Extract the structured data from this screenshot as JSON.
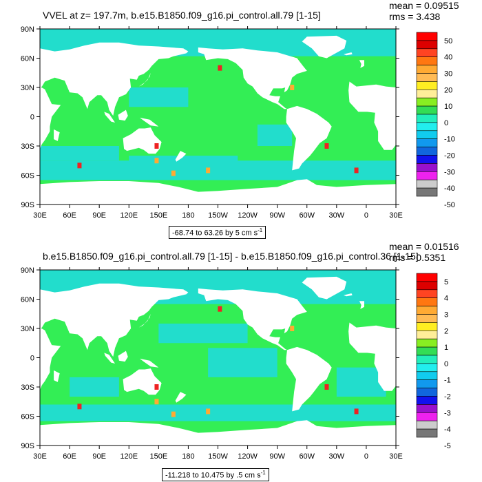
{
  "panels": [
    {
      "title": "VVEL at z= 197.7m, b.e15.B1850.f09_g16.pi_control.all.79 [1-15]",
      "mean": "mean = 0.09515",
      "rms": "rms = 3.438",
      "range_text": "-68.74 to 63.26 by 5 cm s",
      "range_unit_exp": "-1"
    },
    {
      "title": "b.e15.B1850.f09_g16.pi_control.all.79 [1-15] - b.e15.B1850.f09_g16.pi_control.36 [1-15]",
      "mean": "mean = 0.01516",
      "rms": "rms = 0.5351",
      "range_text": "-11.218 to 10.475 by .5 cm s",
      "range_unit_exp": "-1"
    }
  ],
  "colors": {
    "land": "#ffffff",
    "ocean_main": "#33ee55",
    "ocean_alt": "#22ddcc",
    "cb": [
      "#ff0000",
      "#dd0000",
      "#ff4422",
      "#ff7711",
      "#ffaa33",
      "#ffbb55",
      "#ffee22",
      "#ffee99",
      "#88ee22",
      "#33dd55",
      "#22eebb",
      "#22eeee",
      "#11ccee",
      "#1199ee",
      "#1166dd",
      "#1111ee",
      "#9911cc",
      "#ee22ee",
      "#cccccc",
      "#777777"
    ]
  },
  "chart_data": [
    {
      "type": "heatmap",
      "title": "VVEL at z= 197.7m, b.e15.B1850.f09_g16.pi_control.all.79 [1-15]",
      "x_ticks": [
        "30E",
        "60E",
        "90E",
        "120E",
        "150E",
        "180",
        "150W",
        "120W",
        "90W",
        "60W",
        "30W",
        "0",
        "30E"
      ],
      "y_ticks": [
        "90N",
        "60N",
        "30N",
        "0",
        "30S",
        "60S",
        "90S"
      ],
      "colorbar_labels": [
        "50",
        "40",
        "30",
        "20",
        "10",
        "0",
        "-10",
        "-20",
        "-30",
        "-40",
        "-50"
      ],
      "colorbar_levels": 20,
      "range": [
        -50,
        50
      ]
    },
    {
      "type": "heatmap",
      "title": "b.e15.B1850.f09_g16.pi_control.all.79 [1-15] - b.e15.B1850.f09_g16.pi_control.36 [1-15]",
      "x_ticks": [
        "30E",
        "60E",
        "90E",
        "120E",
        "150E",
        "180",
        "150W",
        "120W",
        "90W",
        "60W",
        "30W",
        "0",
        "30E"
      ],
      "y_ticks": [
        "90N",
        "60N",
        "30N",
        "0",
        "30S",
        "60S",
        "90S"
      ],
      "colorbar_labels": [
        "5",
        "4",
        "3",
        "2",
        "1",
        "0",
        "-1",
        "-2",
        "-3",
        "-4",
        "-5"
      ],
      "colorbar_levels": 20,
      "range": [
        -5,
        5
      ]
    }
  ]
}
